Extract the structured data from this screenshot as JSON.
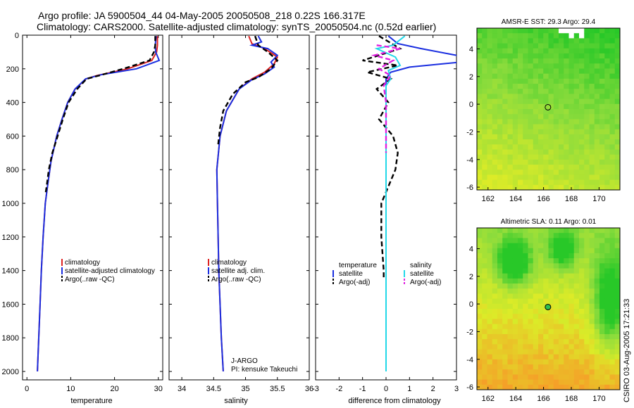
{
  "header": {
    "line1": "Argo profile: JA 5900504_44 04-May-2005 20050508_218 0.22S 166.317E",
    "line2": "Climatology: CARS2000. Satellite-adjusted climatology: synTS_20050504.nc (0.52d earlier)"
  },
  "credit": "CSIRO 03-Aug-2005 17:21:33",
  "colors": {
    "climatology": "#dd2222",
    "satellite": "#1a2ee0",
    "argo": "#000000",
    "sal_sat": "#22d8e8",
    "sal_argo": "#e020e0"
  },
  "chart_data": [
    {
      "type": "line",
      "id": "temperature",
      "xlabel": "temperature",
      "xlim": [
        -1,
        31
      ],
      "xticks": [
        0,
        10,
        20,
        30
      ],
      "ylim": [
        2050,
        0
      ],
      "yticks": [
        0,
        200,
        400,
        600,
        800,
        1000,
        1200,
        1400,
        1600,
        1800,
        2000
      ],
      "series": [
        {
          "name": "climatology",
          "color": "#dd2222",
          "dash": "",
          "points": [
            [
              29.8,
              5
            ],
            [
              29.8,
              60
            ],
            [
              29.6,
              100
            ],
            [
              28.5,
              150
            ],
            [
              23,
              200
            ],
            [
              16,
              240
            ],
            [
              13.5,
              260
            ],
            [
              11,
              320
            ],
            [
              9.3,
              400
            ],
            [
              8,
              500
            ],
            [
              6.8,
              600
            ],
            [
              5.5,
              750
            ],
            [
              4.7,
              900
            ],
            [
              4.2,
              1000
            ],
            [
              3.7,
              1200
            ],
            [
              3.3,
              1400
            ],
            [
              3.0,
              1600
            ],
            [
              2.7,
              1800
            ],
            [
              2.4,
              2000
            ]
          ]
        },
        {
          "name": "satellite-adjusted climatology",
          "color": "#1a2ee0",
          "dash": "",
          "points": [
            [
              29.5,
              5
            ],
            [
              29.3,
              60
            ],
            [
              29.4,
              100
            ],
            [
              30.2,
              150
            ],
            [
              25,
              200
            ],
            [
              17,
              235
            ],
            [
              13.4,
              260
            ],
            [
              11,
              320
            ],
            [
              9.3,
              400
            ],
            [
              8,
              500
            ],
            [
              6.8,
              600
            ],
            [
              5.5,
              750
            ],
            [
              4.7,
              900
            ],
            [
              4.2,
              1000
            ],
            [
              3.7,
              1200
            ],
            [
              3.3,
              1400
            ],
            [
              3.0,
              1600
            ],
            [
              2.7,
              1800
            ],
            [
              2.4,
              2000
            ]
          ]
        },
        {
          "name": "Argo(..raw -QC)",
          "color": "#000000",
          "dash": "7,4",
          "points": [
            [
              29.3,
              5
            ],
            [
              29.3,
              60
            ],
            [
              29.0,
              100
            ],
            [
              28.0,
              150
            ],
            [
              22,
              200
            ],
            [
              16.5,
              240
            ],
            [
              13.6,
              260
            ],
            [
              11.5,
              320
            ],
            [
              9.5,
              400
            ],
            [
              8.2,
              500
            ],
            [
              7.0,
              600
            ],
            [
              5.8,
              700
            ],
            [
              5.0,
              800
            ],
            [
              4.5,
              900
            ],
            [
              4.2,
              950
            ]
          ]
        }
      ],
      "legend": [
        "climatology",
        "satellite-adjusted climatology",
        "Argo(..raw -QC)"
      ]
    },
    {
      "type": "line",
      "id": "salinity",
      "xlabel": "salinity",
      "xlim": [
        33.8,
        36.0
      ],
      "xticks": [
        34,
        34.5,
        35,
        35.5,
        36
      ],
      "ylim": [
        2050,
        0
      ],
      "yticks": [
        0,
        200,
        400,
        600,
        800,
        1000,
        1200,
        1400,
        1600,
        1800,
        2000
      ],
      "series": [
        {
          "name": "climatology",
          "color": "#dd2222",
          "dash": "",
          "points": [
            [
              35.05,
              5
            ],
            [
              35.1,
              50
            ],
            [
              35.3,
              80
            ],
            [
              35.5,
              130
            ],
            [
              35.45,
              170
            ],
            [
              35.3,
              220
            ],
            [
              35.1,
              260
            ],
            [
              34.9,
              320
            ],
            [
              34.7,
              450
            ],
            [
              34.6,
              600
            ],
            [
              34.55,
              800
            ],
            [
              34.56,
              1000
            ],
            [
              34.58,
              1400
            ],
            [
              34.62,
              1800
            ],
            [
              34.65,
              2000
            ]
          ]
        },
        {
          "name": "satellite adj. clim.",
          "color": "#1a2ee0",
          "dash": "",
          "points": [
            [
              35.2,
              5
            ],
            [
              35.25,
              40
            ],
            [
              35.1,
              60
            ],
            [
              35.35,
              80
            ],
            [
              35.5,
              120
            ],
            [
              35.4,
              160
            ],
            [
              35.45,
              190
            ],
            [
              35.3,
              230
            ],
            [
              35.1,
              265
            ],
            [
              34.9,
              320
            ],
            [
              34.7,
              450
            ],
            [
              34.6,
              600
            ],
            [
              34.55,
              800
            ],
            [
              34.56,
              1000
            ],
            [
              34.58,
              1400
            ],
            [
              34.62,
              1800
            ],
            [
              34.65,
              2000
            ]
          ]
        },
        {
          "name": "Argo(..raw -QC)",
          "color": "#000000",
          "dash": "7,4",
          "points": [
            [
              35.15,
              5
            ],
            [
              35.2,
              60
            ],
            [
              35.35,
              100
            ],
            [
              35.5,
              150
            ],
            [
              35.4,
              200
            ],
            [
              35.2,
              250
            ],
            [
              35.0,
              280
            ],
            [
              34.8,
              350
            ],
            [
              34.65,
              450
            ],
            [
              34.6,
              550
            ],
            [
              34.57,
              650
            ]
          ]
        }
      ],
      "legend": [
        "climatology",
        "satellite adj. clim.",
        "Argo(..raw -QC)"
      ],
      "annotation": {
        "line1": "J-ARGO",
        "line2": "PI: kensuke Takeuchi"
      }
    },
    {
      "type": "line",
      "id": "difference",
      "xlabel": "difference from climatology",
      "xlim": [
        -3,
        3
      ],
      "xticks": [
        -3,
        -2,
        -1,
        0,
        1,
        2,
        3
      ],
      "ylim": [
        2050,
        0
      ],
      "yticks": [
        0,
        200,
        400,
        600,
        800,
        1000,
        1200,
        1400,
        1600,
        1800,
        2000
      ],
      "series": [
        {
          "name": "temperature satellite",
          "color": "#1a2ee0",
          "dash": "",
          "points": [
            [
              0.1,
              5
            ],
            [
              0.5,
              50
            ],
            [
              1.5,
              80
            ],
            [
              3,
              120
            ],
            [
              3.2,
              160
            ],
            [
              1.0,
              190
            ],
            [
              0.2,
              220
            ],
            [
              0,
              260
            ],
            [
              0,
              2000
            ]
          ]
        },
        {
          "name": "temperature Argo(-adj)",
          "color": "#000000",
          "dash": "7,4",
          "points": [
            [
              -0.3,
              5
            ],
            [
              0.6,
              80
            ],
            [
              -1.0,
              150
            ],
            [
              0.5,
              180
            ],
            [
              -0.8,
              220
            ],
            [
              0.2,
              260
            ],
            [
              -0.4,
              320
            ],
            [
              0.1,
              400
            ],
            [
              -0.3,
              500
            ],
            [
              0.3,
              600
            ],
            [
              0.5,
              700
            ],
            [
              0.4,
              800
            ],
            [
              -0.2,
              1000
            ],
            [
              -0.2,
              1200
            ],
            [
              -0.1,
              1400
            ],
            [
              -0.1,
              1450
            ]
          ]
        },
        {
          "name": "salinity satellite",
          "color": "#22d8e8",
          "dash": "",
          "points": [
            [
              0.8,
              5
            ],
            [
              0.3,
              60
            ],
            [
              -0.4,
              80
            ],
            [
              0.4,
              130
            ],
            [
              0.6,
              180
            ],
            [
              0.1,
              210
            ],
            [
              0.2,
              260
            ],
            [
              0,
              300
            ],
            [
              0,
              2000
            ]
          ]
        },
        {
          "name": "salinity Argo(-adj)",
          "color": "#e020e0",
          "dash": "7,4",
          "points": [
            [
              -0.4,
              60
            ],
            [
              0.6,
              80
            ],
            [
              -0.5,
              120
            ],
            [
              0.3,
              150
            ],
            [
              -0.3,
              200
            ],
            [
              0.2,
              240
            ],
            [
              -0.1,
              300
            ],
            [
              0,
              400
            ],
            [
              0,
              700
            ]
          ]
        }
      ],
      "legend_left": {
        "heading": "temperature",
        "items": [
          "satellite",
          "Argo(-adj)"
        ]
      },
      "legend_right": {
        "heading": "salinity",
        "items": [
          "satellite",
          "Argo(-adj)"
        ]
      }
    }
  ],
  "maps": [
    {
      "title": "AMSR-E SST: 29.3 Argo: 29.4",
      "xlim": [
        161.2,
        171.5
      ],
      "ylim": [
        -6.2,
        5.5
      ],
      "xticks": [
        162,
        164,
        166,
        168,
        170
      ],
      "yticks": [
        -6,
        -4,
        -2,
        0,
        2,
        4
      ],
      "argo_lon": 166.317,
      "argo_lat": -0.22,
      "kind": "sst"
    },
    {
      "title": "Altimetric SLA: 0.11 Argo: 0.01",
      "xlim": [
        161.2,
        171.5
      ],
      "ylim": [
        -6.2,
        5.5
      ],
      "xticks": [
        162,
        164,
        166,
        168,
        170
      ],
      "yticks": [
        -6,
        -4,
        -2,
        0,
        2,
        4
      ],
      "argo_lon": 166.317,
      "argo_lat": -0.22,
      "kind": "sla"
    }
  ]
}
